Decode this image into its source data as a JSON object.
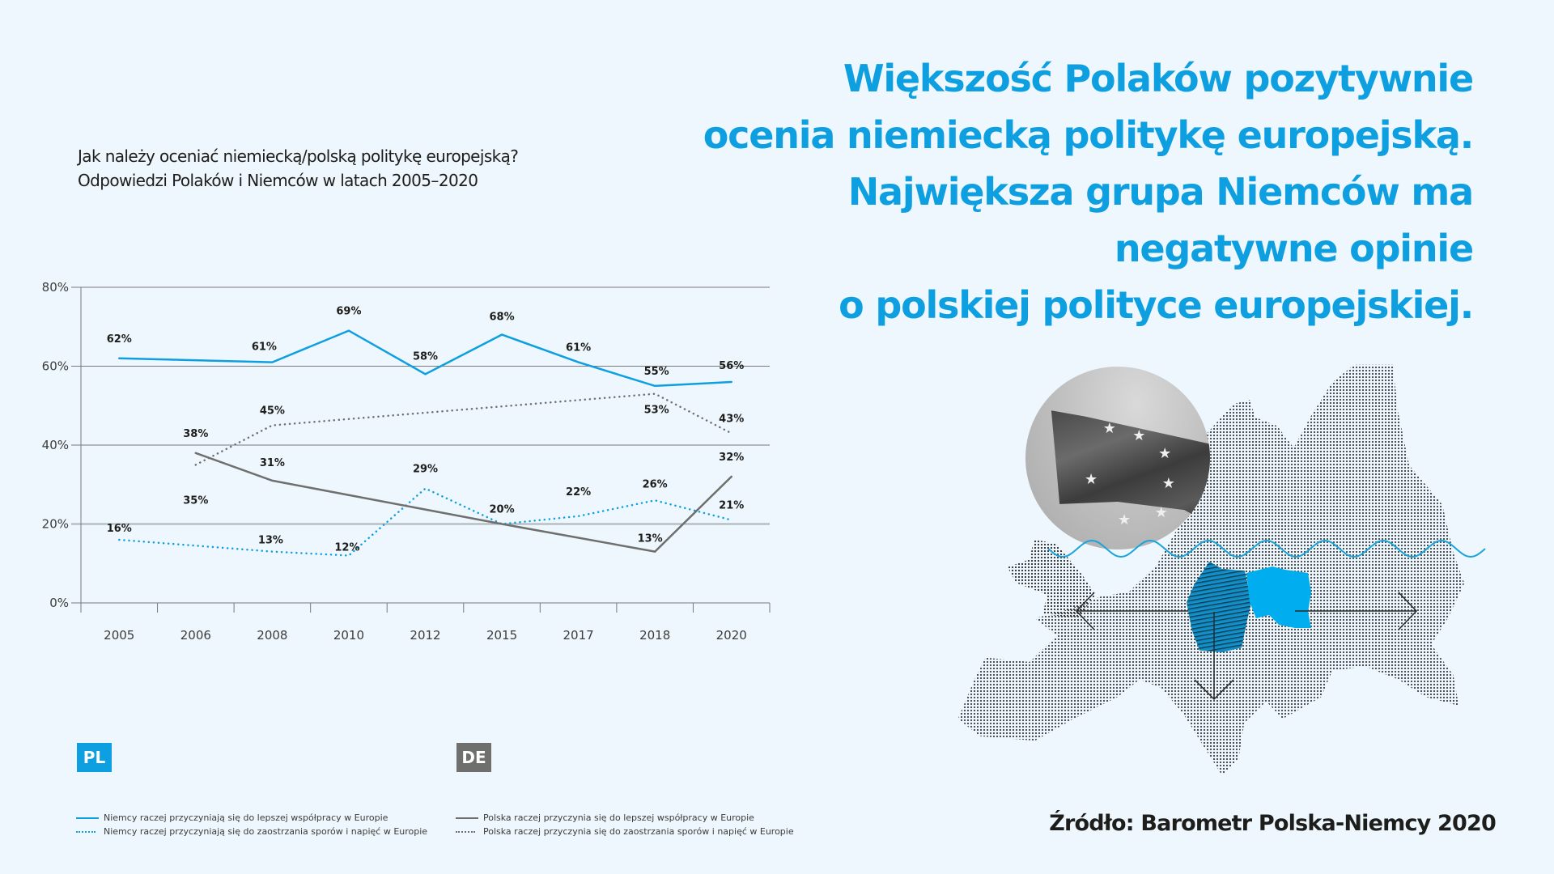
{
  "headline": {
    "lines": [
      "Większość Polaków pozytywnie",
      "ocenia niemiecką politykę europejską.",
      "Największa grupa Niemców ma",
      "negatywne opinie",
      "o polskiej polityce europejskiej."
    ]
  },
  "chart_title": {
    "line1": "Jak należy oceniać niemiecką/polską politykę europejską?",
    "line2": "Odpowiedzi Polaków i Niemców w latach 2005–2020"
  },
  "badges": {
    "pl": "PL",
    "de": "DE"
  },
  "source": "Źródło: Barometr Polska-Niemcy 2020",
  "colors": {
    "accent": "#0e9fe0",
    "gray": "#6f6f6e",
    "background": "#edf7fd"
  },
  "chart_data": {
    "type": "line",
    "title": "Jak należy oceniać niemiecką/polską politykę europejską? Odpowiedzi Polaków i Niemców w latach 2005–2020",
    "xlabel": "",
    "ylabel": "",
    "categories": [
      "2005",
      "2006",
      "2008",
      "2010",
      "2012",
      "2015",
      "2017",
      "2018",
      "2020"
    ],
    "ylim": [
      0,
      80
    ],
    "yticks": [
      "0%",
      "20%",
      "40%",
      "60%",
      "80%"
    ],
    "ytick_values": [
      0,
      20,
      40,
      60,
      80
    ],
    "grid": true,
    "legend_placement": "bottom",
    "series": [
      {
        "name": "Niemcy raczej przyczyniają się do lepszej współpracy w Europie",
        "group": "PL",
        "style": "solid",
        "color": "#0e9fe0",
        "values": [
          62,
          null,
          61,
          69,
          58,
          68,
          61,
          55,
          56
        ],
        "labels": [
          "62%",
          null,
          "61%",
          "69%",
          "58%",
          "68%",
          "61%",
          "55%",
          "56%"
        ]
      },
      {
        "name": "Niemcy raczej przyczyniają się do zaostrzania sporów i napięć w Europie",
        "group": "PL",
        "style": "dotted",
        "color": "#0e9fe0",
        "values": [
          16,
          null,
          13,
          12,
          29,
          20,
          22,
          26,
          21
        ],
        "labels": [
          "16%",
          null,
          "13%",
          "12%",
          "29%",
          "20%",
          "22%",
          "26%",
          "21%"
        ]
      },
      {
        "name": "Polska raczej przyczynia się do lepszej współpracy w Europie",
        "group": "DE",
        "style": "solid",
        "color": "#6f6f6e",
        "values": [
          null,
          38,
          31,
          null,
          null,
          20,
          null,
          13,
          32
        ],
        "labels": [
          null,
          "38%",
          "31%",
          null,
          null,
          null,
          null,
          "13%",
          "32%"
        ]
      },
      {
        "name": "Polska raczej przyczynia się do zaostrzania sporów i napięć w Europie",
        "group": "DE",
        "style": "dotted",
        "color": "#6f6f6e",
        "values": [
          null,
          35,
          45,
          null,
          null,
          null,
          null,
          53,
          43
        ],
        "labels": [
          null,
          "35%",
          "45%",
          null,
          null,
          null,
          null,
          "53%",
          "43%"
        ]
      }
    ]
  }
}
